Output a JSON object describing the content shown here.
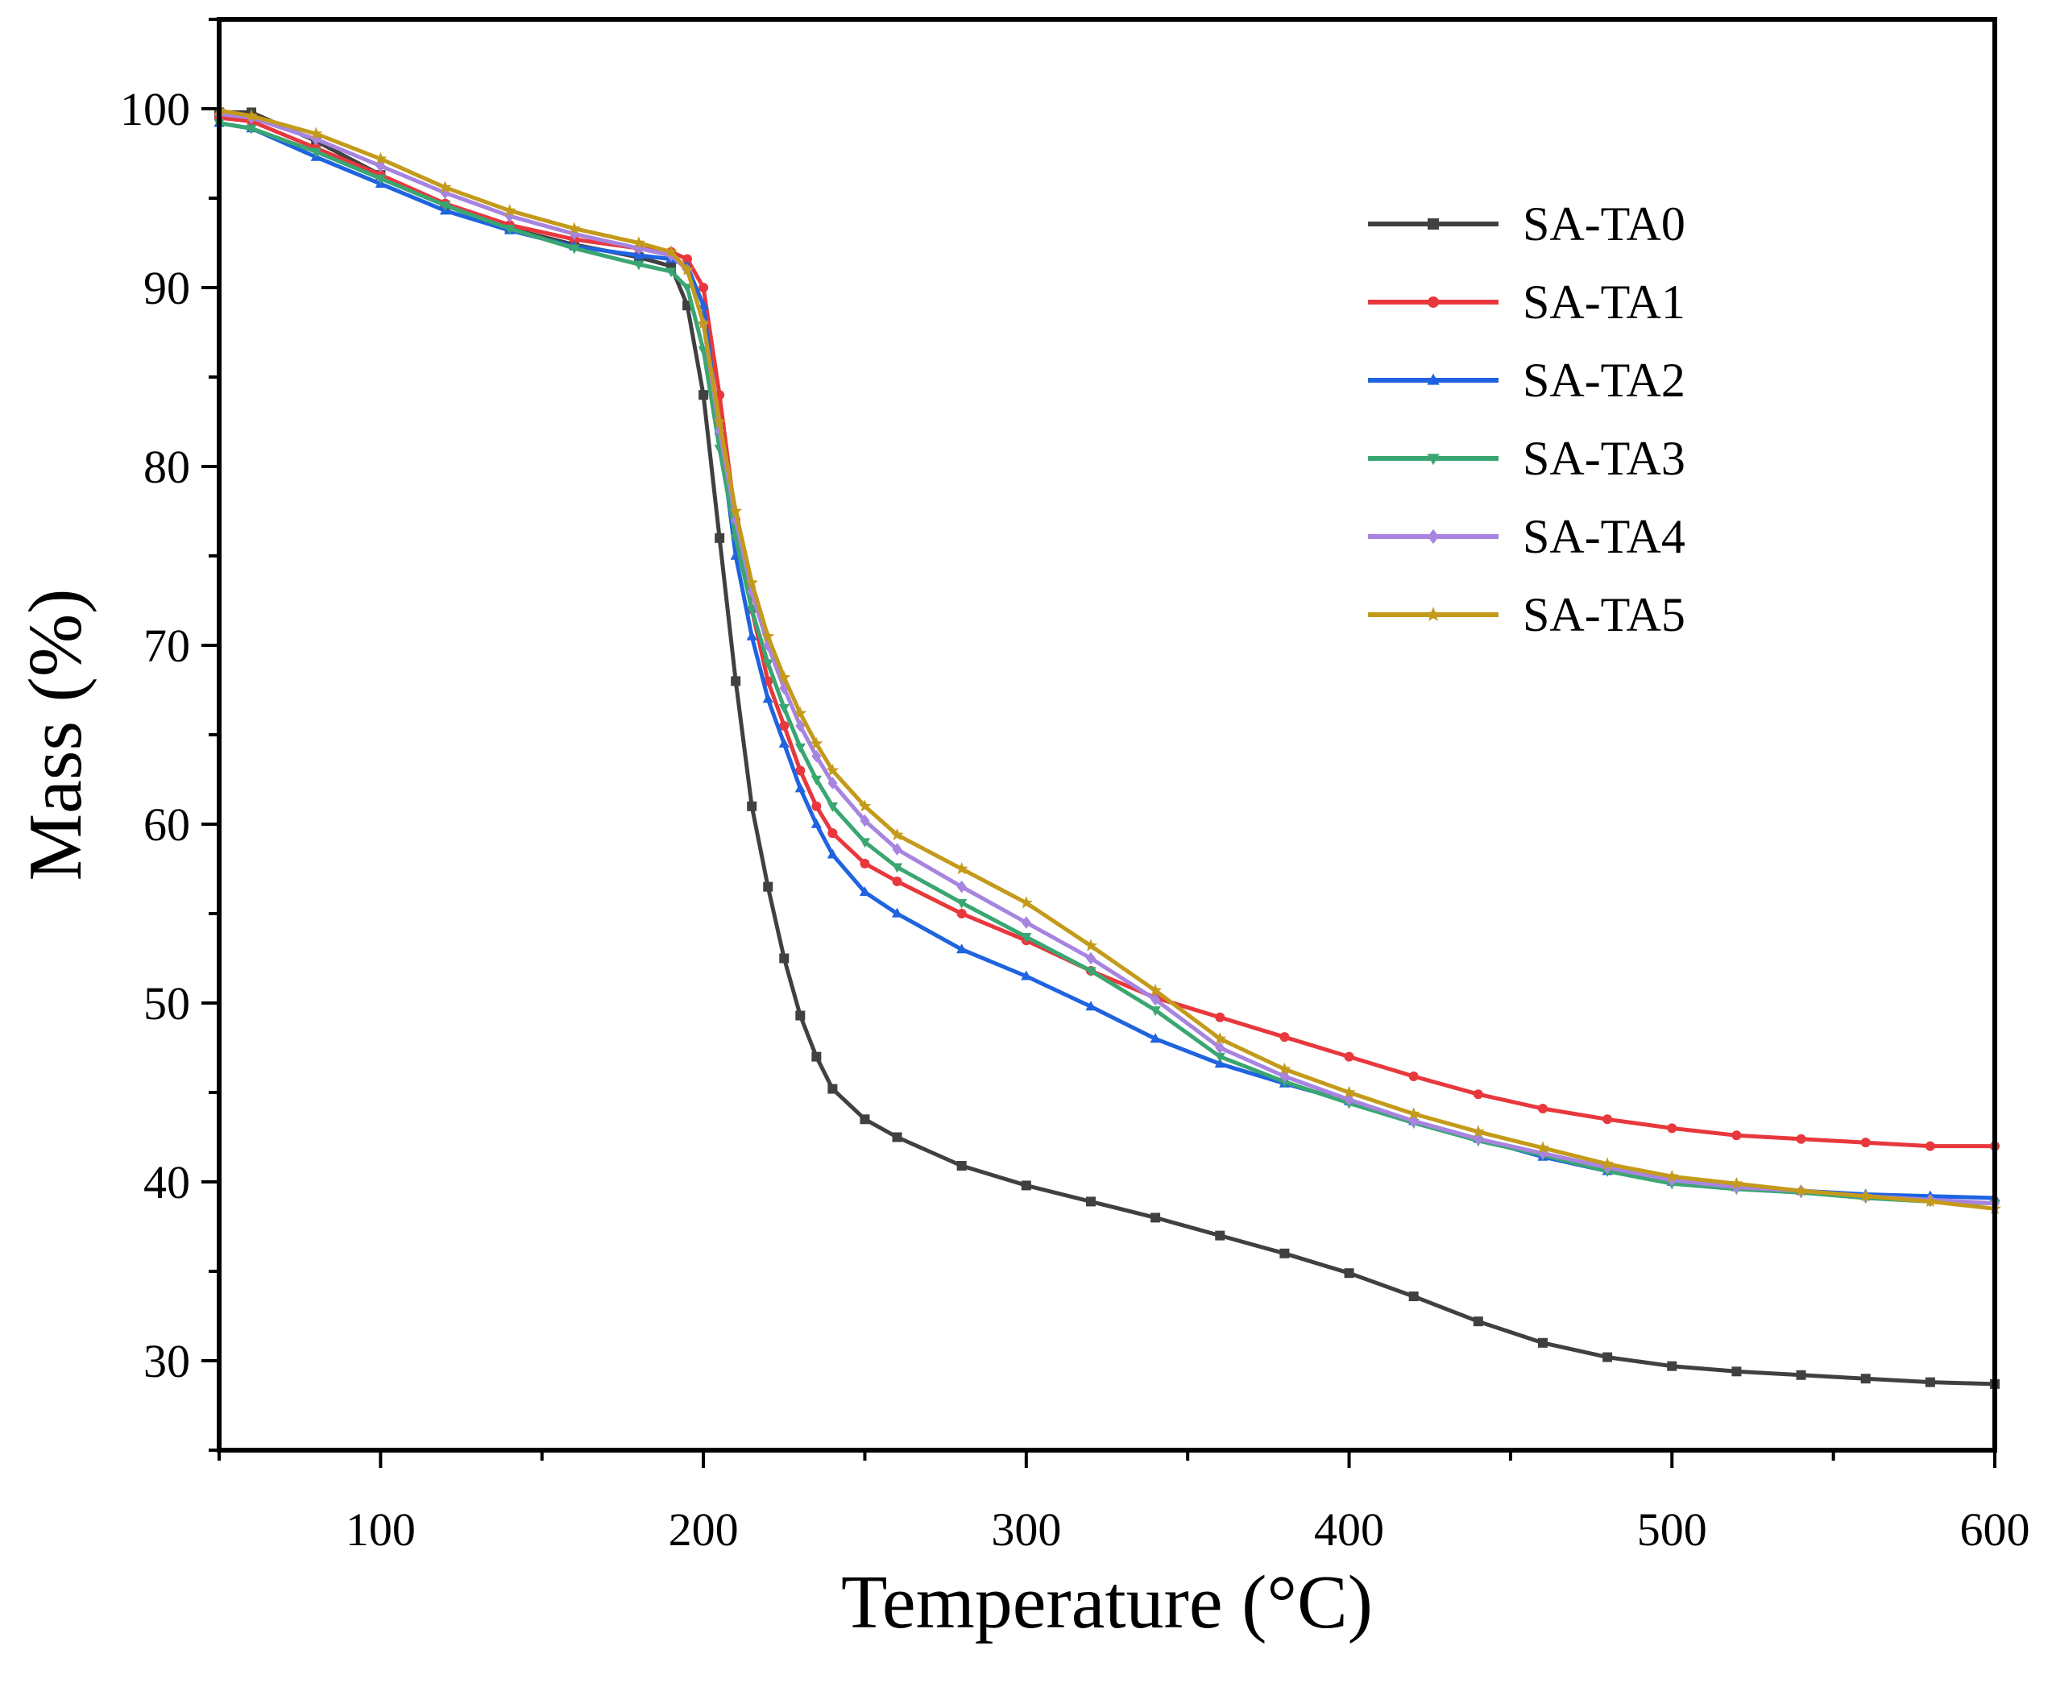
{
  "chart_data": {
    "type": "line",
    "title": "",
    "xlabel": "Temperature (°C)",
    "ylabel": "Mass (%)",
    "xlim": [
      50,
      600
    ],
    "ylim": [
      25,
      105
    ],
    "xticks": [
      100,
      200,
      300,
      400,
      500,
      600
    ],
    "yticks": [
      30,
      40,
      50,
      60,
      70,
      80,
      90,
      100
    ],
    "grid": false,
    "legend_position": "top-right",
    "series": [
      {
        "name": "SA-TA0",
        "color": "#404040",
        "marker": "square",
        "x": [
          50,
          60,
          80,
          100,
          120,
          140,
          160,
          180,
          190,
          195,
          200,
          205,
          210,
          215,
          220,
          225,
          230,
          235,
          240,
          250,
          260,
          280,
          300,
          320,
          340,
          360,
          380,
          400,
          420,
          440,
          460,
          480,
          500,
          520,
          540,
          560,
          580,
          600
        ],
        "y": [
          99.8,
          99.8,
          98.2,
          96.3,
          94.6,
          93.3,
          92.4,
          91.7,
          91.2,
          89.0,
          84.0,
          76.0,
          68.0,
          61.0,
          56.5,
          52.5,
          49.3,
          47.0,
          45.2,
          43.5,
          42.5,
          40.9,
          39.8,
          38.9,
          38.0,
          37.0,
          36.0,
          34.9,
          33.6,
          32.2,
          31.0,
          30.2,
          29.7,
          29.4,
          29.2,
          29.0,
          28.8,
          28.7
        ]
      },
      {
        "name": "SA-TA1",
        "color": "#e8383d",
        "marker": "circle",
        "x": [
          50,
          60,
          80,
          100,
          120,
          140,
          160,
          180,
          190,
          195,
          200,
          205,
          210,
          215,
          220,
          225,
          230,
          235,
          240,
          250,
          260,
          280,
          300,
          320,
          340,
          360,
          380,
          400,
          420,
          440,
          460,
          480,
          500,
          520,
          540,
          560,
          580,
          600
        ],
        "y": [
          99.5,
          99.3,
          97.8,
          96.3,
          94.7,
          93.5,
          92.7,
          92.2,
          92.0,
          91.6,
          90.0,
          84.0,
          77.0,
          72.0,
          68.0,
          65.5,
          63.0,
          61.0,
          59.5,
          57.8,
          56.8,
          55.0,
          53.5,
          51.8,
          50.3,
          49.2,
          48.1,
          47.0,
          45.9,
          44.9,
          44.1,
          43.5,
          43.0,
          42.6,
          42.4,
          42.2,
          42.0,
          42.0
        ]
      },
      {
        "name": "SA-TA2",
        "color": "#1f63e0",
        "marker": "triangle",
        "x": [
          50,
          60,
          80,
          100,
          120,
          140,
          160,
          180,
          190,
          195,
          200,
          205,
          210,
          215,
          220,
          225,
          230,
          235,
          240,
          250,
          260,
          280,
          300,
          320,
          340,
          360,
          380,
          400,
          420,
          440,
          460,
          480,
          500,
          520,
          540,
          560,
          580,
          600
        ],
        "y": [
          99.2,
          98.9,
          97.3,
          95.8,
          94.3,
          93.2,
          92.3,
          91.8,
          91.6,
          91.2,
          89.0,
          82.0,
          75.0,
          70.5,
          67.0,
          64.5,
          62.0,
          60.0,
          58.3,
          56.2,
          55.0,
          53.0,
          51.5,
          49.8,
          48.0,
          46.6,
          45.5,
          44.5,
          43.4,
          42.4,
          41.4,
          40.6,
          40.0,
          39.7,
          39.5,
          39.3,
          39.2,
          39.1
        ]
      },
      {
        "name": "SA-TA3",
        "color": "#3aa672",
        "marker": "triangle-down",
        "x": [
          50,
          60,
          80,
          100,
          120,
          140,
          160,
          180,
          190,
          195,
          200,
          205,
          210,
          215,
          220,
          225,
          230,
          235,
          240,
          250,
          260,
          280,
          300,
          320,
          340,
          360,
          380,
          400,
          420,
          440,
          460,
          480,
          500,
          520,
          540,
          560,
          580,
          600
        ],
        "y": [
          99.2,
          98.9,
          97.6,
          96.1,
          94.6,
          93.3,
          92.2,
          91.3,
          90.9,
          90.0,
          86.5,
          81.0,
          76.0,
          72.0,
          69.0,
          66.5,
          64.3,
          62.5,
          61.0,
          59.0,
          57.6,
          55.6,
          53.7,
          51.8,
          49.6,
          47.0,
          45.6,
          44.4,
          43.3,
          42.3,
          41.5,
          40.6,
          39.9,
          39.6,
          39.4,
          39.1,
          38.9,
          38.8
        ]
      },
      {
        "name": "SA-TA4",
        "color": "#a784e0",
        "marker": "diamond",
        "x": [
          50,
          60,
          80,
          100,
          120,
          140,
          160,
          180,
          190,
          195,
          200,
          205,
          210,
          215,
          220,
          225,
          230,
          235,
          240,
          250,
          260,
          280,
          300,
          320,
          340,
          360,
          380,
          400,
          420,
          440,
          460,
          480,
          500,
          520,
          540,
          560,
          580,
          600
        ],
        "y": [
          99.7,
          99.5,
          98.3,
          96.8,
          95.3,
          94.0,
          93.0,
          92.2,
          91.8,
          91.0,
          88.0,
          82.0,
          77.0,
          73.0,
          70.0,
          67.6,
          65.5,
          63.8,
          62.3,
          60.2,
          58.6,
          56.5,
          54.5,
          52.5,
          50.2,
          47.5,
          45.9,
          44.6,
          43.4,
          42.4,
          41.6,
          40.8,
          40.1,
          39.7,
          39.5,
          39.2,
          39.0,
          38.8
        ]
      },
      {
        "name": "SA-TA5",
        "color": "#c49a1a",
        "marker": "star",
        "x": [
          50,
          60,
          80,
          100,
          120,
          140,
          160,
          180,
          190,
          195,
          200,
          205,
          210,
          215,
          220,
          225,
          230,
          235,
          240,
          250,
          260,
          280,
          300,
          320,
          340,
          360,
          380,
          400,
          420,
          440,
          460,
          480,
          500,
          520,
          540,
          560,
          580,
          600
        ],
        "y": [
          99.9,
          99.6,
          98.6,
          97.2,
          95.6,
          94.3,
          93.3,
          92.5,
          92.0,
          91.0,
          88.0,
          82.5,
          77.5,
          73.5,
          70.5,
          68.2,
          66.2,
          64.5,
          63.0,
          61.0,
          59.4,
          57.5,
          55.6,
          53.2,
          50.7,
          48.0,
          46.3,
          45.0,
          43.8,
          42.8,
          41.9,
          41.0,
          40.3,
          39.9,
          39.5,
          39.2,
          38.9,
          38.5
        ]
      }
    ]
  }
}
